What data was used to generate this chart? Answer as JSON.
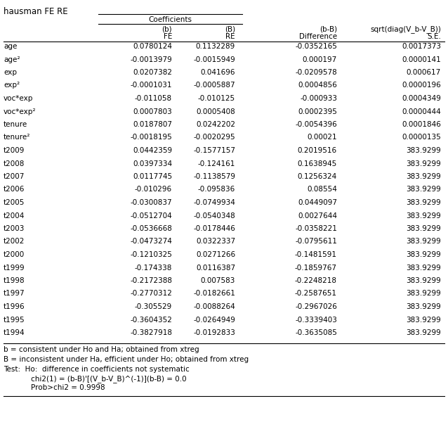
{
  "title": "hausman FE RE",
  "header_group": "Coefficients",
  "col_headers": [
    "(b)",
    "(B)",
    "(b-B)",
    "sqrt(diag(V_b-V_B))"
  ],
  "col_subheaders": [
    "FE",
    "RE",
    "Difference",
    "S.E."
  ],
  "rows": [
    [
      "age",
      "0.0780124",
      "0.1132289",
      "-0.0352165",
      "0.0017373"
    ],
    [
      "age²",
      "-0.0013979",
      "-0.0015949",
      "0.000197",
      "0.0000141"
    ],
    [
      "exp",
      "0.0207382",
      "0.041696",
      "-0.0209578",
      "0.000617"
    ],
    [
      "exp²",
      "-0.0001031",
      "-0.0005887",
      "0.0004856",
      "0.0000196"
    ],
    [
      "voc*exp",
      "-0.011058",
      "-0.010125",
      "-0.000933",
      "0.0004349"
    ],
    [
      "voc*exp²",
      "0.0007803",
      "0.0005408",
      "0.0002395",
      "0.0000444"
    ],
    [
      "tenure",
      "0.0187807",
      "0.0242202",
      "-0.0054396",
      "0.0001846"
    ],
    [
      "tenure²",
      "-0.0018195",
      "-0.0020295",
      "0.00021",
      "0.0000135"
    ],
    [
      "t2009",
      "0.0442359",
      "-0.1577157",
      "0.2019516",
      "383.9299"
    ],
    [
      "t2008",
      "0.0397334",
      "-0.124161",
      "0.1638945",
      "383.9299"
    ],
    [
      "t2007",
      "0.0117745",
      "-0.1138579",
      "0.1256324",
      "383.9299"
    ],
    [
      "t2006",
      "-0.010296",
      "-0.095836",
      "0.08554",
      "383.9299"
    ],
    [
      "t2005",
      "-0.0300837",
      "-0.0749934",
      "0.0449097",
      "383.9299"
    ],
    [
      "t2004",
      "-0.0512704",
      "-0.0540348",
      "0.0027644",
      "383.9299"
    ],
    [
      "t2003",
      "-0.0536668",
      "-0.0178446",
      "-0.0358221",
      "383.9299"
    ],
    [
      "t2002",
      "-0.0473274",
      "0.0322337",
      "-0.0795611",
      "383.9299"
    ],
    [
      "t2000",
      "-0.1210325",
      "0.0271266",
      "-0.1481591",
      "383.9299"
    ],
    [
      "t1999",
      "-0.174338",
      "0.0116387",
      "-0.1859767",
      "383.9299"
    ],
    [
      "t1998",
      "-0.2172388",
      "0.007583",
      "-0.2248218",
      "383.9299"
    ],
    [
      "t1997",
      "-0.2770312",
      "-0.0182661",
      "-0.2587651",
      "383.9299"
    ],
    [
      "t1996",
      "-0.305529",
      "-0.0088264",
      "-0.2967026",
      "383.9299"
    ],
    [
      "t1995",
      "-0.3604352",
      "-0.0264949",
      "-0.3339403",
      "383.9299"
    ],
    [
      "t1994",
      "-0.3827918",
      "-0.0192833",
      "-0.3635085",
      "383.9299"
    ]
  ],
  "footnotes": [
    "b = consistent under Ho and Ha; obtained from xtreg",
    "B = inconsistent under Ha, efficient under Ho; obtained from xtreg",
    "Test:  Ho:  difference in coefficients not systematic",
    "            chi2(1) = (b-B)'[(V_b-V_B)^(-1)](b-B) = 0.0",
    "            Prob>chi2 = 0.9998"
  ],
  "bg_color": "#ffffff",
  "text_color": "#000000",
  "font_size": 7.5,
  "title_font_size": 8.5,
  "fig_width": 6.38,
  "fig_height": 6.24,
  "dpi": 100
}
